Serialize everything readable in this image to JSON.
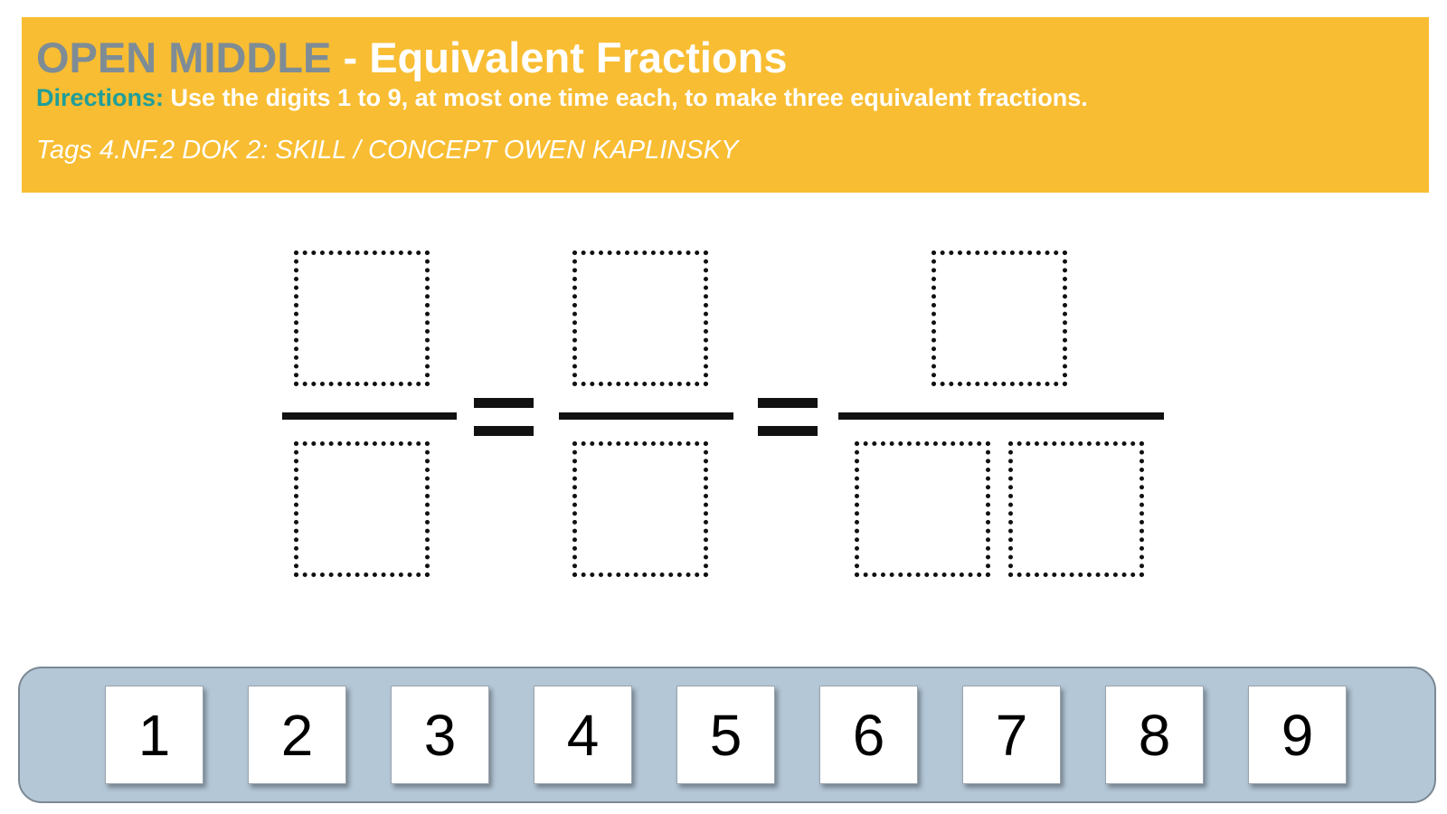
{
  "banner": {
    "brand": "OPEN MIDDLE",
    "title_rest": " - Equivalent Fractions",
    "directions_label": "Directions:",
    "directions_text": " Use the digits 1 to 9, at most one time each, to make three equivalent fractions.",
    "tags": "Tags 4.NF.2 DOK 2: SKILL / CONCEPT OWEN KAPLINSKY",
    "colors": {
      "background": "#f8bd32",
      "brand": "#7e8c96",
      "directions_label": "#1f9e9a",
      "text": "#ffffff"
    }
  },
  "puzzle": {
    "fractions": [
      {
        "numerator_slots": 1,
        "denominator_slots": 1
      },
      {
        "numerator_slots": 1,
        "denominator_slots": 1
      },
      {
        "numerator_slots": 1,
        "denominator_slots": 2
      }
    ],
    "operator": "equals"
  },
  "tray": {
    "digits": [
      "1",
      "2",
      "3",
      "4",
      "5",
      "6",
      "7",
      "8",
      "9"
    ],
    "colors": {
      "background": "#b4c7d7",
      "tile": "#ffffff"
    }
  }
}
